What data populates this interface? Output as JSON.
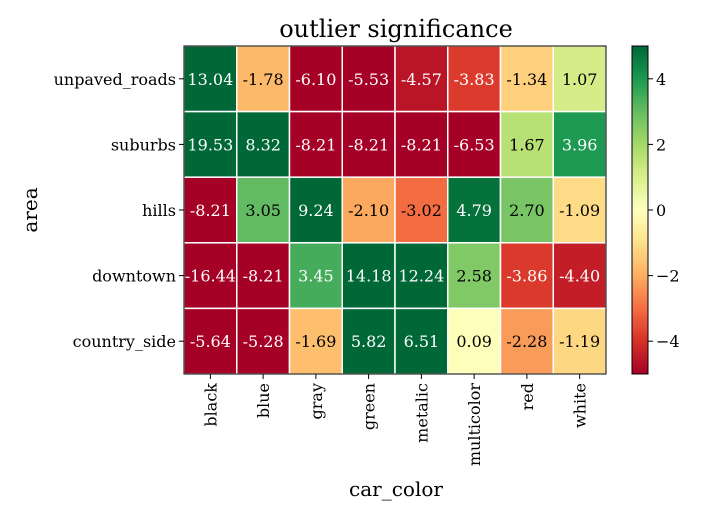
{
  "chart_data": {
    "type": "heatmap",
    "title": "outlier significance",
    "xlabel": "car_color",
    "ylabel": "area",
    "x_categories": [
      "black",
      "blue",
      "gray",
      "green",
      "metalic",
      "multicolor",
      "red",
      "white"
    ],
    "y_categories": [
      "unpaved_roads",
      "suburbs",
      "hills",
      "downtown",
      "country_side"
    ],
    "values": [
      [
        13.04,
        -1.78,
        -6.1,
        -5.53,
        -4.57,
        -3.83,
        -1.34,
        1.07
      ],
      [
        19.53,
        8.32,
        -8.21,
        -8.21,
        -8.21,
        -6.53,
        1.67,
        3.96
      ],
      [
        -8.21,
        3.05,
        9.24,
        -2.1,
        -3.02,
        4.79,
        2.7,
        -1.09
      ],
      [
        -16.44,
        -8.21,
        3.45,
        14.18,
        12.24,
        2.58,
        -3.86,
        -4.4
      ],
      [
        -5.64,
        -5.28,
        -1.69,
        5.82,
        6.51,
        0.09,
        -2.28,
        -1.19
      ]
    ],
    "colormap": "RdYlGn",
    "color_range": [
      -5,
      5
    ],
    "colorbar_ticks": [
      4,
      2,
      0,
      -2,
      -4
    ],
    "colorbar_tick_labels": [
      "4",
      "2",
      "0",
      "−2",
      "−4"
    ],
    "grid_line_color": "#ffffff",
    "dark_text_color": "#000000",
    "light_text_color": "#ffffff"
  }
}
